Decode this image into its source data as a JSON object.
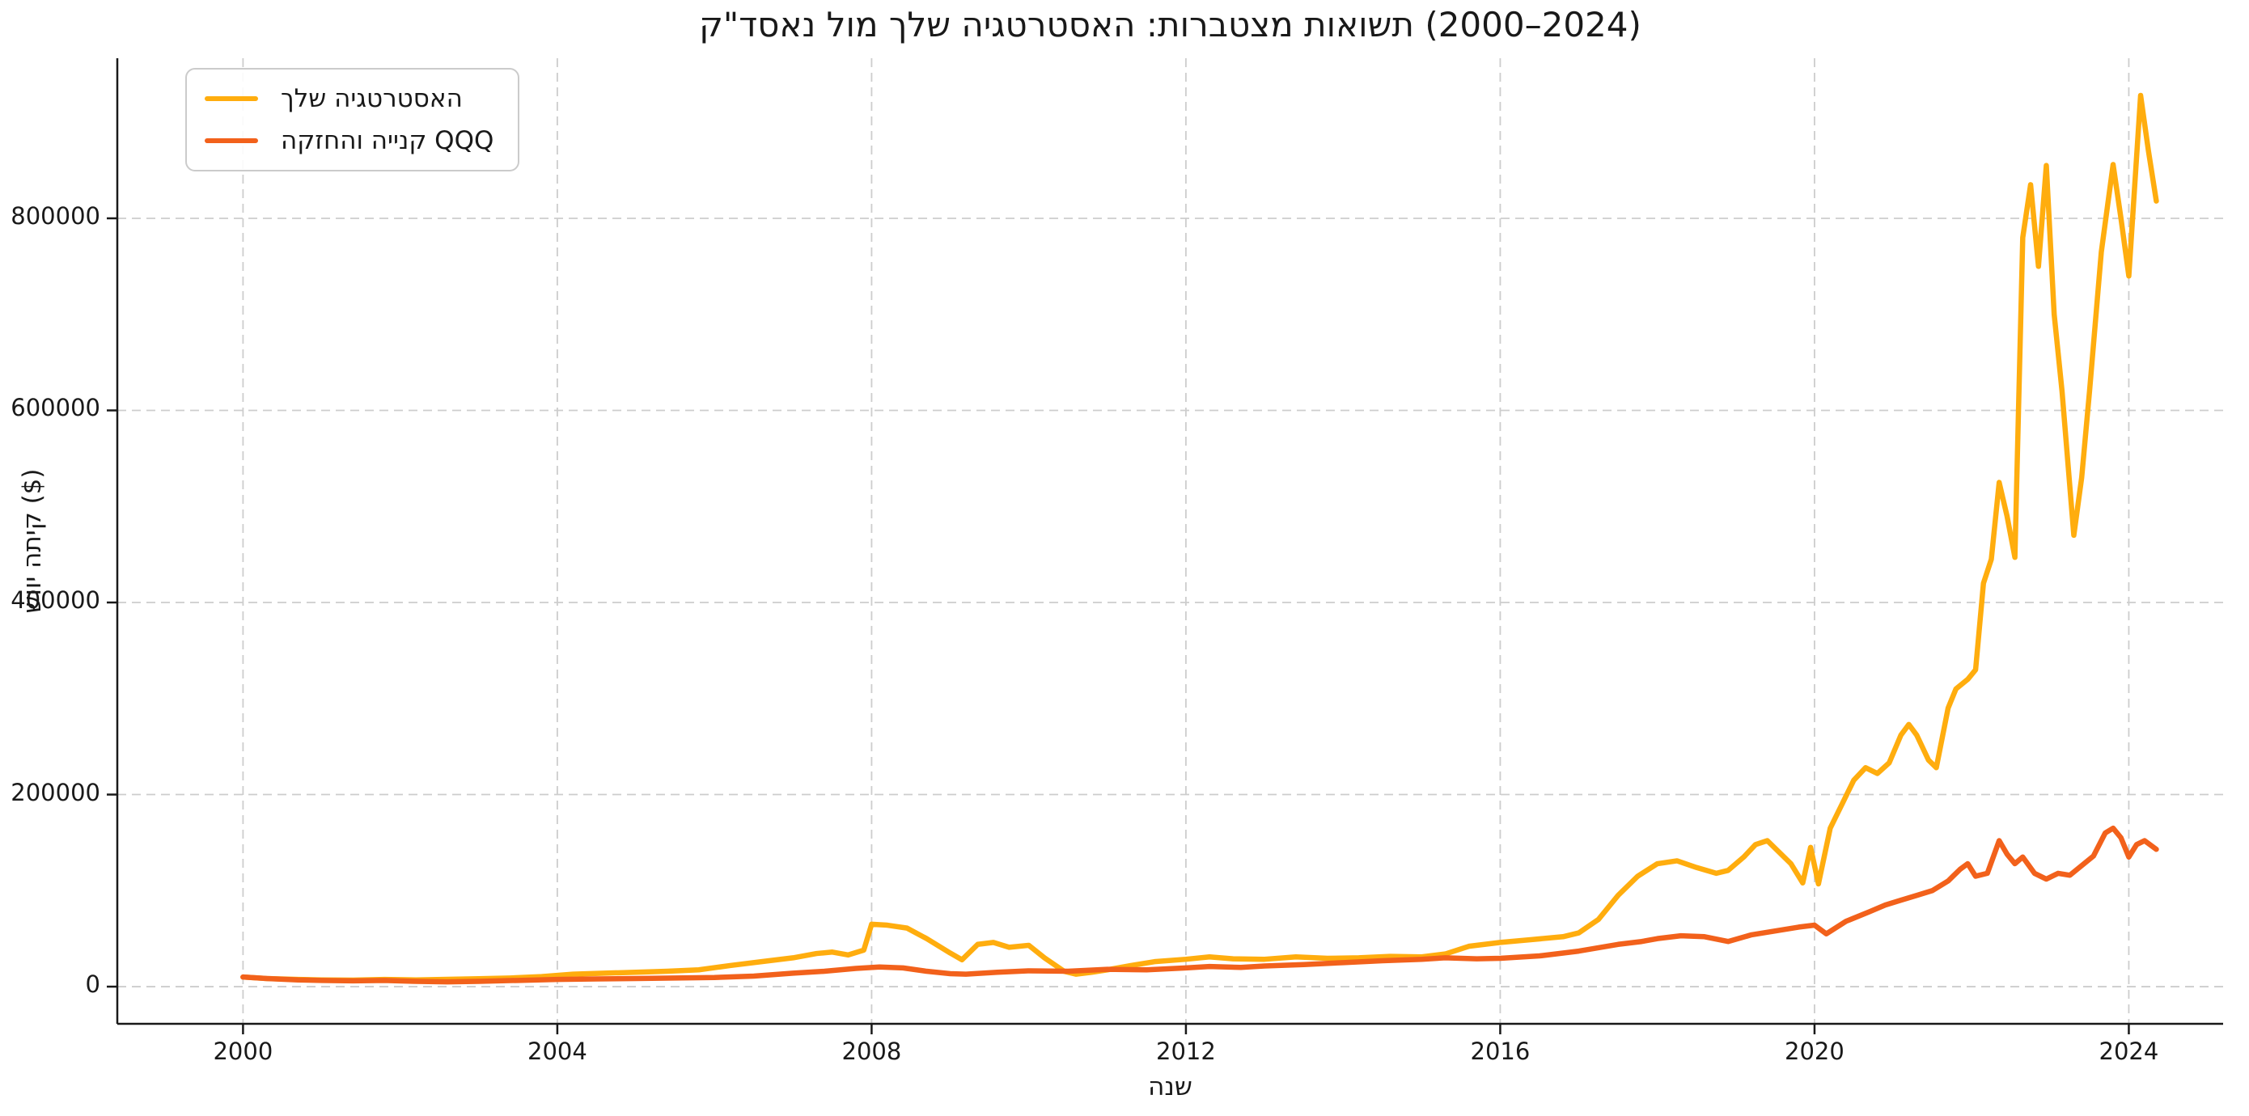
{
  "figure": {
    "background": "#ffffff",
    "text_color": "#191919"
  },
  "title": {
    "text": "ק\"דסאנ לומ ךלש היגטרטסאה :תורבטצמ תואושת (2000–2024)"
  },
  "legend": {
    "position": "upper-left",
    "items": [
      {
        "label": "ךלש היגטרטסאה",
        "color": "#FFAD0E"
      },
      {
        "label": "הקזחהו היינק QQQ",
        "color": "#F2611B"
      }
    ]
  },
  "axes": {
    "xlabel": "הנש",
    "ylabel": "שווי התיק ($)",
    "spine_color": "#191919",
    "grid_color": "#cdcdcd",
    "grid_style": "dashed"
  },
  "chart_data": {
    "type": "line",
    "title": "ק\"דסאנ לומ ךלש היגטרטסאה :תורבטצמ תואושת (2000–2024)",
    "xlabel": "הנש",
    "ylabel": "שווי התיק ($)",
    "x_ticks": [
      2000,
      2004,
      2008,
      2012,
      2016,
      2020,
      2024
    ],
    "y_ticks": [
      0,
      200000,
      400000,
      600000,
      800000
    ],
    "xlim": [
      1998.4,
      2025.2
    ],
    "ylim": [
      -38700,
      966700
    ],
    "grid": {
      "visible": true,
      "style": "dashed"
    },
    "legend_position": "upper-left",
    "series": [
      {
        "name": "ךלש היגטרטסאה",
        "color": "#FFAD0E",
        "line_width": 6.5,
        "x": [
          2000.0,
          2000.3,
          2000.7,
          2001.0,
          2001.4,
          2001.8,
          2002.2,
          2002.6,
          2003.0,
          2003.4,
          2003.8,
          2004.2,
          2004.6,
          2005.0,
          2005.4,
          2005.8,
          2006.2,
          2006.6,
          2007.0,
          2007.3,
          2007.5,
          2007.7,
          2007.9,
          2008.0,
          2008.2,
          2008.45,
          2008.7,
          2009.0,
          2009.15,
          2009.35,
          2009.55,
          2009.75,
          2010.0,
          2010.2,
          2010.45,
          2010.6,
          2010.8,
          2011.0,
          2011.3,
          2011.6,
          2012.0,
          2012.3,
          2012.6,
          2013.0,
          2013.4,
          2013.8,
          2014.2,
          2014.6,
          2015.0,
          2015.3,
          2015.6,
          2016.0,
          2016.4,
          2016.8,
          2017.0,
          2017.25,
          2017.5,
          2017.75,
          2018.0,
          2018.25,
          2018.5,
          2018.75,
          2018.9,
          2019.1,
          2019.25,
          2019.4,
          2019.55,
          2019.7,
          2019.85,
          2019.95,
          2020.05,
          2020.2,
          2020.35,
          2020.5,
          2020.65,
          2020.8,
          2020.95,
          2021.1,
          2021.2,
          2021.3,
          2021.45,
          2021.55,
          2021.7,
          2021.8,
          2021.95,
          2022.05,
          2022.15,
          2022.25,
          2022.35,
          2022.45,
          2022.55,
          2022.65,
          2022.75,
          2022.85,
          2022.95,
          2023.05,
          2023.15,
          2023.3,
          2023.4,
          2023.5,
          2023.65,
          2023.8,
          2023.9,
          2024.0,
          2024.15,
          2024.25,
          2024.35
        ],
        "y": [
          10000,
          8500,
          7500,
          7000,
          6800,
          7500,
          7000,
          7600,
          8200,
          9000,
          10500,
          13000,
          14000,
          15000,
          16000,
          17500,
          22000,
          26000,
          30000,
          34500,
          36000,
          33000,
          38000,
          65000,
          64000,
          61000,
          50000,
          35000,
          28000,
          44000,
          46000,
          41000,
          43000,
          30000,
          16000,
          13000,
          15000,
          17500,
          22000,
          26000,
          28500,
          31000,
          29000,
          28500,
          31000,
          29500,
          30000,
          31500,
          31000,
          34000,
          42000,
          46000,
          49000,
          52000,
          56000,
          70000,
          95000,
          115000,
          128000,
          131000,
          124000,
          118000,
          121000,
          135000,
          148000,
          152000,
          140000,
          128000,
          108000,
          145000,
          107000,
          165000,
          190000,
          215000,
          228000,
          222000,
          233000,
          262000,
          273000,
          262000,
          236000,
          228000,
          290000,
          310000,
          320000,
          330000,
          420000,
          445000,
          525000,
          490000,
          447000,
          780000,
          835000,
          750000,
          855000,
          700000,
          620000,
          470000,
          530000,
          620000,
          765000,
          856000,
          800000,
          740000,
          928000,
          870000,
          818000
        ]
      },
      {
        "name": "הקזחהו היינק QQQ",
        "color": "#F2611B",
        "line_width": 6.5,
        "x": [
          2000.0,
          2000.3,
          2000.7,
          2001.0,
          2001.4,
          2001.8,
          2002.2,
          2002.6,
          2003.0,
          2003.5,
          2004.0,
          2004.5,
          2005.0,
          2005.5,
          2006.0,
          2006.5,
          2007.0,
          2007.4,
          2007.8,
          2008.1,
          2008.4,
          2008.7,
          2009.0,
          2009.2,
          2009.6,
          2010.0,
          2010.5,
          2011.0,
          2011.5,
          2012.0,
          2012.3,
          2012.7,
          2013.0,
          2013.5,
          2014.0,
          2014.5,
          2015.0,
          2015.3,
          2015.7,
          2016.0,
          2016.5,
          2017.0,
          2017.5,
          2017.8,
          2018.0,
          2018.3,
          2018.6,
          2018.9,
          2019.2,
          2019.5,
          2019.8,
          2020.0,
          2020.15,
          2020.4,
          2020.7,
          2020.9,
          2021.1,
          2021.3,
          2021.5,
          2021.7,
          2021.85,
          2021.95,
          2022.05,
          2022.2,
          2022.35,
          2022.45,
          2022.55,
          2022.65,
          2022.8,
          2022.95,
          2023.1,
          2023.25,
          2023.4,
          2023.55,
          2023.7,
          2023.8,
          2023.9,
          2024.0,
          2024.1,
          2024.2,
          2024.35
        ],
        "y": [
          10000,
          8500,
          7000,
          6500,
          6000,
          6500,
          5500,
          5000,
          5500,
          6500,
          7500,
          8000,
          8500,
          9000,
          9500,
          11000,
          14000,
          16000,
          19000,
          20500,
          19500,
          16000,
          13500,
          13000,
          15000,
          16500,
          16000,
          18000,
          17500,
          19500,
          21000,
          20000,
          21500,
          23000,
          25000,
          27000,
          28500,
          30000,
          29000,
          29500,
          32000,
          37000,
          44000,
          47000,
          50000,
          53000,
          52000,
          47000,
          54000,
          58000,
          62000,
          64000,
          55000,
          68000,
          78000,
          85000,
          90000,
          95000,
          100000,
          110000,
          122000,
          128000,
          115000,
          118000,
          152000,
          138000,
          128000,
          135000,
          118000,
          112000,
          118000,
          116000,
          126000,
          136000,
          160000,
          165000,
          155000,
          135000,
          148000,
          152000,
          143000
        ]
      }
    ]
  }
}
